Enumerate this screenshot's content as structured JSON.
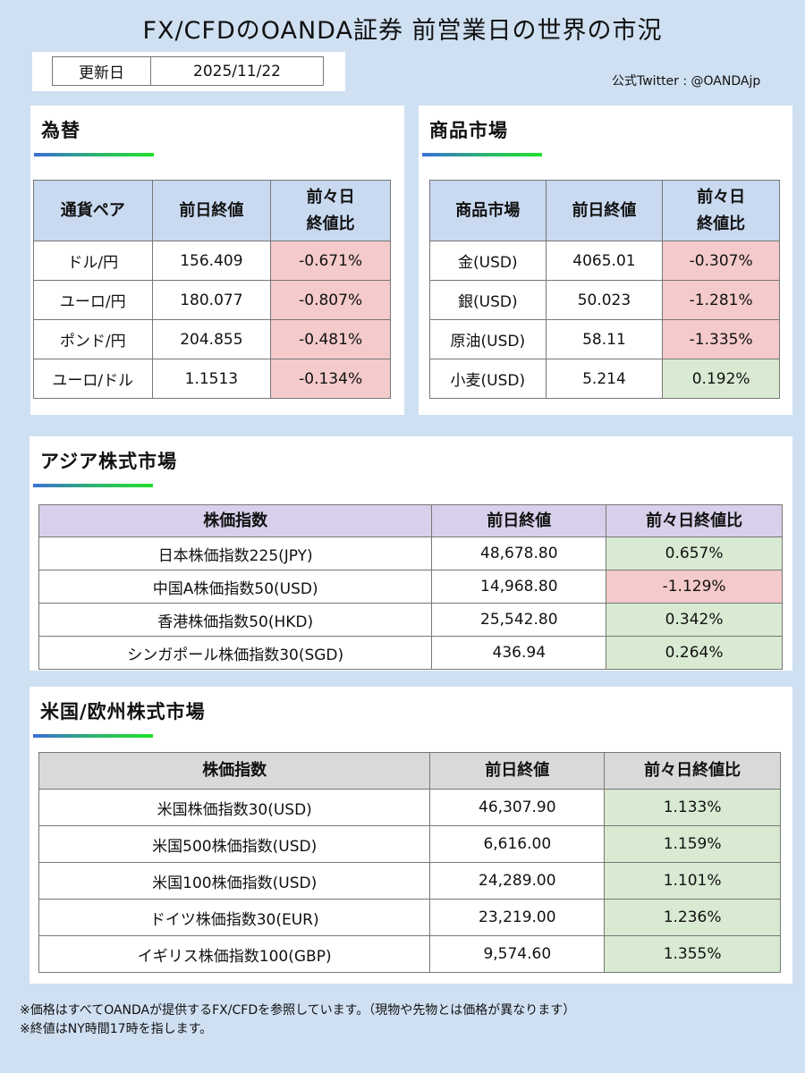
{
  "title": "FX/CFDのOANDA証券 前営業日の世界の市況",
  "update": {
    "label": "更新日",
    "date": "2025/11/22"
  },
  "twitter": "公式Twitter : @OANDAjp",
  "fx": {
    "heading": "為替",
    "headers": [
      "通貨ペア",
      "前日終値",
      "前々日終値比"
    ],
    "header3_lines": [
      "前々日",
      "終値比"
    ],
    "rows": [
      {
        "name": "ドル/円",
        "close": "156.409",
        "change": "-0.671%"
      },
      {
        "name": "ユーロ/円",
        "close": "180.077",
        "change": "-0.807%"
      },
      {
        "name": "ポンド/円",
        "close": "204.855",
        "change": "-0.481%"
      },
      {
        "name": "ユーロ/ドル",
        "close": "1.1513",
        "change": "-0.134%"
      }
    ]
  },
  "commodities": {
    "heading": "商品市場",
    "headers": [
      "商品市場",
      "前日終値",
      "前々日終値比"
    ],
    "header3_lines": [
      "前々日",
      "終値比"
    ],
    "rows": [
      {
        "name": "金(USD)",
        "close": "4065.01",
        "change": "-0.307%"
      },
      {
        "name": "銀(USD)",
        "close": "50.023",
        "change": "-1.281%"
      },
      {
        "name": "原油(USD)",
        "close": "58.11",
        "change": "-1.335%"
      },
      {
        "name": "小麦(USD)",
        "close": "5.214",
        "change": "0.192%"
      }
    ]
  },
  "asia": {
    "heading": "アジア株式市場",
    "headers": [
      "株価指数",
      "前日終値",
      "前々日終値比"
    ],
    "rows": [
      {
        "name": "日本株価指数225(JPY)",
        "close": "48,678.80",
        "change": "0.657%"
      },
      {
        "name": "中国A株価指数50(USD)",
        "close": "14,968.80",
        "change": "-1.129%"
      },
      {
        "name": "香港株価指数50(HKD)",
        "close": "25,542.80",
        "change": "0.342%"
      },
      {
        "name": "シンガポール株価指数30(SGD)",
        "close": "436.94",
        "change": "0.264%"
      }
    ]
  },
  "useu": {
    "heading": "米国/欧州株式市場",
    "headers": [
      "株価指数",
      "前日終値",
      "前々日終値比"
    ],
    "rows": [
      {
        "name": "米国株価指数30(USD)",
        "close": "46,307.90",
        "change": "1.133%"
      },
      {
        "name": "米国500株価指数(USD)",
        "close": "6,616.00",
        "change": "1.159%"
      },
      {
        "name": "米国100株価指数(USD)",
        "close": "24,289.00",
        "change": "1.101%"
      },
      {
        "name": "ドイツ株価指数30(EUR)",
        "close": "23,219.00",
        "change": "1.236%"
      },
      {
        "name": "イギリス株価指数100(GBP)",
        "close": "9,574.60",
        "change": "1.355%"
      }
    ]
  },
  "notes": [
    "※価格はすべてOANDAが提供するFX/CFDを参照しています。（現物や先物とは価格が異なります）",
    "※終値はNY時間17時を指します。"
  ],
  "colors": {
    "negative": "#f4caca",
    "positive": "#d8ead2",
    "header_blue": "#c8d9f0",
    "header_purple": "#d8d0ea",
    "header_gray": "#d9d9d9"
  }
}
